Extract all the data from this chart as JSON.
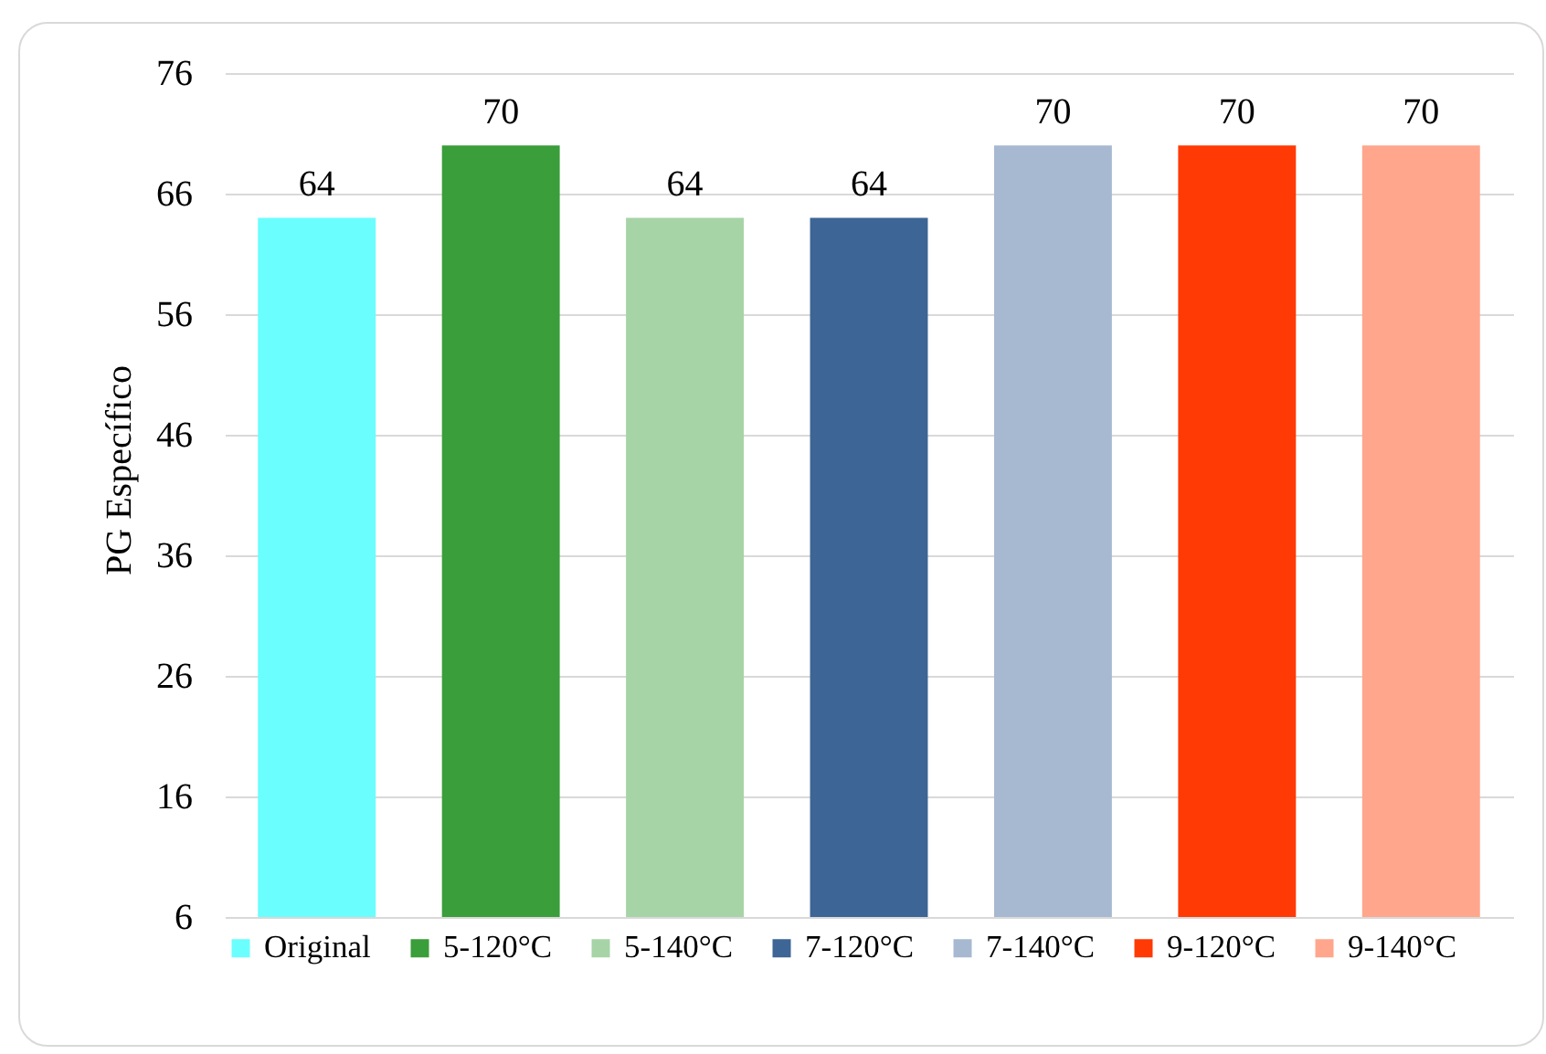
{
  "chart_data": {
    "type": "bar",
    "ylabel": "PG Específico",
    "categories": [
      null
    ],
    "series": [
      {
        "name": "Original",
        "color": "#6bfefe",
        "values": [
          64
        ]
      },
      {
        "name": "5-120°C",
        "color": "#3a9e3a",
        "values": [
          70
        ]
      },
      {
        "name": "5-140°C",
        "color": "#a6d4a6",
        "values": [
          64
        ]
      },
      {
        "name": "7-120°C",
        "color": "#3d6595",
        "values": [
          64
        ]
      },
      {
        "name": "7-140°C",
        "color": "#a7b9d1",
        "values": [
          70
        ]
      },
      {
        "name": "9-120°C",
        "color": "#ff3a05",
        "values": [
          70
        ]
      },
      {
        "name": "9-140°C",
        "color": "#ffa68c",
        "values": [
          70
        ]
      }
    ],
    "ylim": [
      6,
      76
    ],
    "yticks": [
      6,
      16,
      26,
      36,
      46,
      56,
      66,
      76
    ],
    "grid": "y",
    "legend": "bottom",
    "data_labels": true
  }
}
